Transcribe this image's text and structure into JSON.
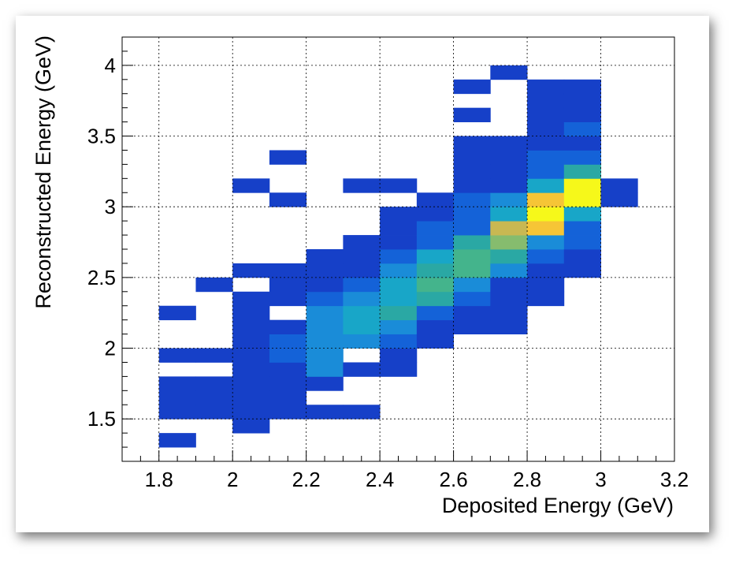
{
  "chart_data": {
    "type": "heatmap",
    "title": "",
    "xlabel": "Deposited Energy (GeV)",
    "ylabel": "Reconstructed Energy (GeV)",
    "xlim": [
      1.7,
      3.2
    ],
    "ylim": [
      1.2,
      4.2
    ],
    "bin_width_x": 0.1,
    "bin_height_y": 0.1,
    "x_ticks": [
      1.8,
      2.0,
      2.2,
      2.4,
      2.6,
      2.8,
      3.0,
      3.2
    ],
    "x_tick_labels": [
      "1.8",
      "2",
      "2.2",
      "2.4",
      "2.6",
      "2.8",
      "3",
      "3.2"
    ],
    "y_ticks": [
      1.5,
      2.0,
      2.5,
      3.0,
      3.5,
      4.0
    ],
    "y_tick_labels": [
      "1.5",
      "2",
      "2.5",
      "3",
      "3.5",
      "4"
    ],
    "grid": true,
    "palette": [
      "#2b3a9a",
      "#1640c8",
      "#1462d8",
      "#1a8cd8",
      "#18a6c8",
      "#2aa8a4",
      "#44b48c",
      "#86bc6e",
      "#c9b852",
      "#f6c536",
      "#f6f81a"
    ],
    "cells": [
      [
        1.8,
        1.3,
        1
      ],
      [
        1.8,
        1.5,
        1
      ],
      [
        1.8,
        1.6,
        1
      ],
      [
        1.8,
        1.7,
        1
      ],
      [
        1.8,
        1.9,
        1
      ],
      [
        1.8,
        2.2,
        1
      ],
      [
        1.9,
        1.5,
        1
      ],
      [
        1.9,
        1.6,
        1
      ],
      [
        1.9,
        1.7,
        1
      ],
      [
        1.9,
        1.9,
        1
      ],
      [
        2.0,
        1.4,
        1
      ],
      [
        2.0,
        1.5,
        1
      ],
      [
        2.0,
        1.6,
        1
      ],
      [
        2.0,
        1.7,
        1
      ],
      [
        2.0,
        1.8,
        1
      ],
      [
        2.0,
        1.9,
        1
      ],
      [
        2.0,
        2.0,
        1
      ],
      [
        2.0,
        2.1,
        1
      ],
      [
        2.0,
        2.2,
        1
      ],
      [
        2.0,
        2.3,
        1
      ],
      [
        2.0,
        2.5,
        1
      ],
      [
        2.0,
        3.1,
        1
      ],
      [
        1.9,
        2.4,
        1
      ],
      [
        2.1,
        1.5,
        1
      ],
      [
        2.1,
        1.6,
        1
      ],
      [
        2.1,
        1.7,
        1
      ],
      [
        2.1,
        1.8,
        1
      ],
      [
        2.1,
        1.9,
        2
      ],
      [
        2.1,
        2.0,
        2
      ],
      [
        2.1,
        2.1,
        1
      ],
      [
        2.1,
        2.3,
        1
      ],
      [
        2.1,
        2.4,
        1
      ],
      [
        2.1,
        2.5,
        1
      ],
      [
        2.1,
        3.0,
        1
      ],
      [
        2.1,
        3.3,
        1
      ],
      [
        2.2,
        1.5,
        1
      ],
      [
        2.2,
        1.7,
        1
      ],
      [
        2.2,
        1.8,
        3
      ],
      [
        2.2,
        1.9,
        3
      ],
      [
        2.2,
        2.0,
        3
      ],
      [
        2.2,
        2.1,
        3
      ],
      [
        2.2,
        2.2,
        3
      ],
      [
        2.2,
        2.3,
        2
      ],
      [
        2.2,
        2.4,
        1
      ],
      [
        2.2,
        2.5,
        1
      ],
      [
        2.2,
        2.6,
        1
      ],
      [
        2.3,
        1.5,
        1
      ],
      [
        2.3,
        1.8,
        1
      ],
      [
        2.3,
        2.0,
        3
      ],
      [
        2.3,
        2.1,
        4
      ],
      [
        2.3,
        2.2,
        4
      ],
      [
        2.3,
        2.3,
        3
      ],
      [
        2.3,
        2.4,
        2
      ],
      [
        2.3,
        2.5,
        1
      ],
      [
        2.3,
        2.6,
        1
      ],
      [
        2.3,
        2.7,
        1
      ],
      [
        2.3,
        3.1,
        1
      ],
      [
        2.4,
        1.8,
        1
      ],
      [
        2.4,
        1.9,
        1
      ],
      [
        2.4,
        2.0,
        2
      ],
      [
        2.4,
        2.1,
        3
      ],
      [
        2.4,
        2.2,
        5
      ],
      [
        2.4,
        2.3,
        4
      ],
      [
        2.4,
        2.4,
        4
      ],
      [
        2.4,
        2.5,
        3
      ],
      [
        2.4,
        2.6,
        2
      ],
      [
        2.4,
        2.7,
        1
      ],
      [
        2.4,
        2.8,
        1
      ],
      [
        2.4,
        2.9,
        1
      ],
      [
        2.4,
        3.1,
        1
      ],
      [
        2.5,
        2.0,
        1
      ],
      [
        2.5,
        2.1,
        1
      ],
      [
        2.5,
        2.2,
        2
      ],
      [
        2.5,
        2.3,
        5
      ],
      [
        2.5,
        2.4,
        6
      ],
      [
        2.5,
        2.5,
        5
      ],
      [
        2.5,
        2.6,
        4
      ],
      [
        2.5,
        2.7,
        2
      ],
      [
        2.5,
        2.8,
        2
      ],
      [
        2.5,
        2.9,
        1
      ],
      [
        2.5,
        3.0,
        1
      ],
      [
        2.6,
        2.1,
        1
      ],
      [
        2.6,
        2.2,
        1
      ],
      [
        2.6,
        2.3,
        2
      ],
      [
        2.6,
        2.4,
        3
      ],
      [
        2.6,
        2.5,
        6
      ],
      [
        2.6,
        2.6,
        6
      ],
      [
        2.6,
        2.7,
        5
      ],
      [
        2.6,
        2.8,
        2
      ],
      [
        2.6,
        2.9,
        2
      ],
      [
        2.6,
        3.0,
        2
      ],
      [
        2.6,
        3.1,
        1
      ],
      [
        2.6,
        3.2,
        1
      ],
      [
        2.6,
        3.3,
        1
      ],
      [
        2.6,
        3.4,
        1
      ],
      [
        2.6,
        3.6,
        1
      ],
      [
        2.6,
        3.8,
        1
      ],
      [
        2.7,
        2.1,
        1
      ],
      [
        2.7,
        2.2,
        1
      ],
      [
        2.7,
        2.3,
        1
      ],
      [
        2.7,
        2.4,
        1
      ],
      [
        2.7,
        2.5,
        3
      ],
      [
        2.7,
        2.6,
        5
      ],
      [
        2.7,
        2.7,
        7
      ],
      [
        2.7,
        2.8,
        8
      ],
      [
        2.7,
        2.9,
        4
      ],
      [
        2.7,
        3.0,
        3
      ],
      [
        2.7,
        3.1,
        1
      ],
      [
        2.7,
        3.2,
        1
      ],
      [
        2.7,
        3.3,
        1
      ],
      [
        2.7,
        3.4,
        1
      ],
      [
        2.7,
        3.9,
        1
      ],
      [
        2.8,
        2.3,
        1
      ],
      [
        2.8,
        2.4,
        1
      ],
      [
        2.8,
        2.5,
        1
      ],
      [
        2.8,
        2.6,
        2
      ],
      [
        2.8,
        2.7,
        3
      ],
      [
        2.8,
        2.8,
        9
      ],
      [
        2.8,
        2.9,
        10
      ],
      [
        2.8,
        3.0,
        9
      ],
      [
        2.8,
        3.1,
        4
      ],
      [
        2.8,
        3.2,
        2
      ],
      [
        2.8,
        3.3,
        2
      ],
      [
        2.8,
        3.4,
        1
      ],
      [
        2.8,
        3.5,
        1
      ],
      [
        2.8,
        3.6,
        1
      ],
      [
        2.8,
        3.7,
        1
      ],
      [
        2.8,
        3.8,
        1
      ],
      [
        2.9,
        2.5,
        1
      ],
      [
        2.9,
        2.6,
        1
      ],
      [
        2.9,
        2.7,
        2
      ],
      [
        2.9,
        2.8,
        2
      ],
      [
        2.9,
        2.9,
        4
      ],
      [
        2.9,
        3.0,
        10
      ],
      [
        2.9,
        3.1,
        10
      ],
      [
        2.9,
        3.2,
        5
      ],
      [
        2.9,
        3.3,
        2
      ],
      [
        2.9,
        3.4,
        1
      ],
      [
        2.9,
        3.5,
        2
      ],
      [
        2.9,
        3.6,
        1
      ],
      [
        2.9,
        3.7,
        1
      ],
      [
        2.9,
        3.8,
        1
      ],
      [
        3.0,
        3.0,
        1
      ],
      [
        3.0,
        3.1,
        1
      ]
    ]
  }
}
